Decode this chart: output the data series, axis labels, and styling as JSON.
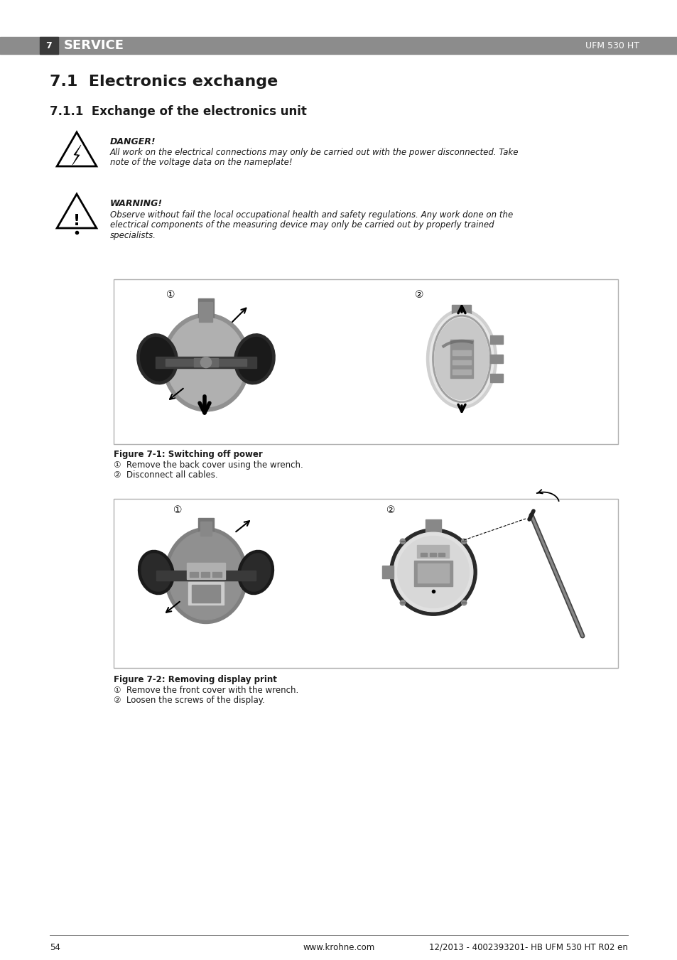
{
  "page_background": "#ffffff",
  "header_bar_color": "#8c8c8c",
  "header_number_box_color": "#3a3a3a",
  "header_text_color": "#ffffff",
  "header_number": "7",
  "header_section": "SERVICE",
  "header_right": "UFM 530 HT",
  "footer_page": "54",
  "footer_center": "www.krohne.com",
  "footer_right": "12/2013 - 4002393201- HB UFM 530 HT R02 en",
  "section_title": "7.1  Electronics exchange",
  "subsection_title": "7.1.1  Exchange of the electronics unit",
  "danger_label": "DANGER!",
  "danger_text_1": "All work on the electrical connections may only be carried out with the power disconnected. Take",
  "danger_text_2": "note of the voltage data on the nameplate!",
  "warning_label": "WARNING!",
  "warning_text_1": "Observe without fail the local occupational health and safety regulations. Any work done on the",
  "warning_text_2": "electrical components of the measuring device may only be carried out by properly trained",
  "warning_text_3": "specialists.",
  "fig1_caption": "Figure 7-1: Switching off power",
  "fig1_step1": "①  Remove the back cover using the wrench.",
  "fig1_step2": "②  Disconnect all cables.",
  "fig2_caption": "Figure 7-2: Removing display print",
  "fig2_step1": "①  Remove the front cover with the wrench.",
  "fig2_step2": "②  Loosen the screws of the display.",
  "text_color": "#1a1a1a"
}
